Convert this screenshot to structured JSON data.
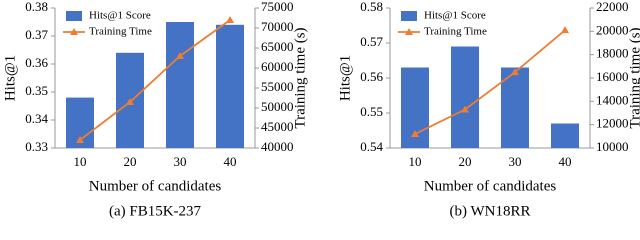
{
  "chart_data": [
    {
      "type": "bar_line",
      "caption": "(a) FB15K-237",
      "x_label": "Number of candidates",
      "y_label": "Hits@1",
      "y2_label": "Training time (s)",
      "categories": [
        "10",
        "20",
        "30",
        "40"
      ],
      "series": [
        {
          "name": "Hits@1 Score",
          "color": "#4472c4",
          "values": [
            0.348,
            0.364,
            0.375,
            0.374
          ]
        },
        {
          "name": "Training Time",
          "color": "#ed7d31",
          "values": [
            42000,
            51500,
            63000,
            72000
          ],
          "axis": "y2"
        }
      ],
      "ylim": [
        0.33,
        0.38
      ],
      "yticks": [
        0.33,
        0.34,
        0.35,
        0.36,
        0.37,
        0.38
      ],
      "y2lim": [
        40000,
        75000
      ],
      "y2ticks": [
        40000,
        45000,
        50000,
        55000,
        60000,
        65000,
        70000,
        75000
      ]
    },
    {
      "type": "bar_line",
      "caption": "(b) WN18RR",
      "x_label": "Number of candidates",
      "y_label": "Hits@1",
      "y2_label": "Training time (s)",
      "categories": [
        "10",
        "20",
        "30",
        "40"
      ],
      "series": [
        {
          "name": "Hits@1 Score",
          "color": "#4472c4",
          "values": [
            0.563,
            0.569,
            0.563,
            0.547
          ]
        },
        {
          "name": "Training Time",
          "color": "#ed7d31",
          "values": [
            11200,
            13300,
            16500,
            20100
          ],
          "axis": "y2"
        }
      ],
      "ylim": [
        0.54,
        0.58
      ],
      "yticks": [
        0.54,
        0.55,
        0.56,
        0.57,
        0.58
      ],
      "y2lim": [
        10000,
        22000
      ],
      "y2ticks": [
        10000,
        12000,
        14000,
        16000,
        18000,
        20000,
        22000
      ]
    }
  ]
}
